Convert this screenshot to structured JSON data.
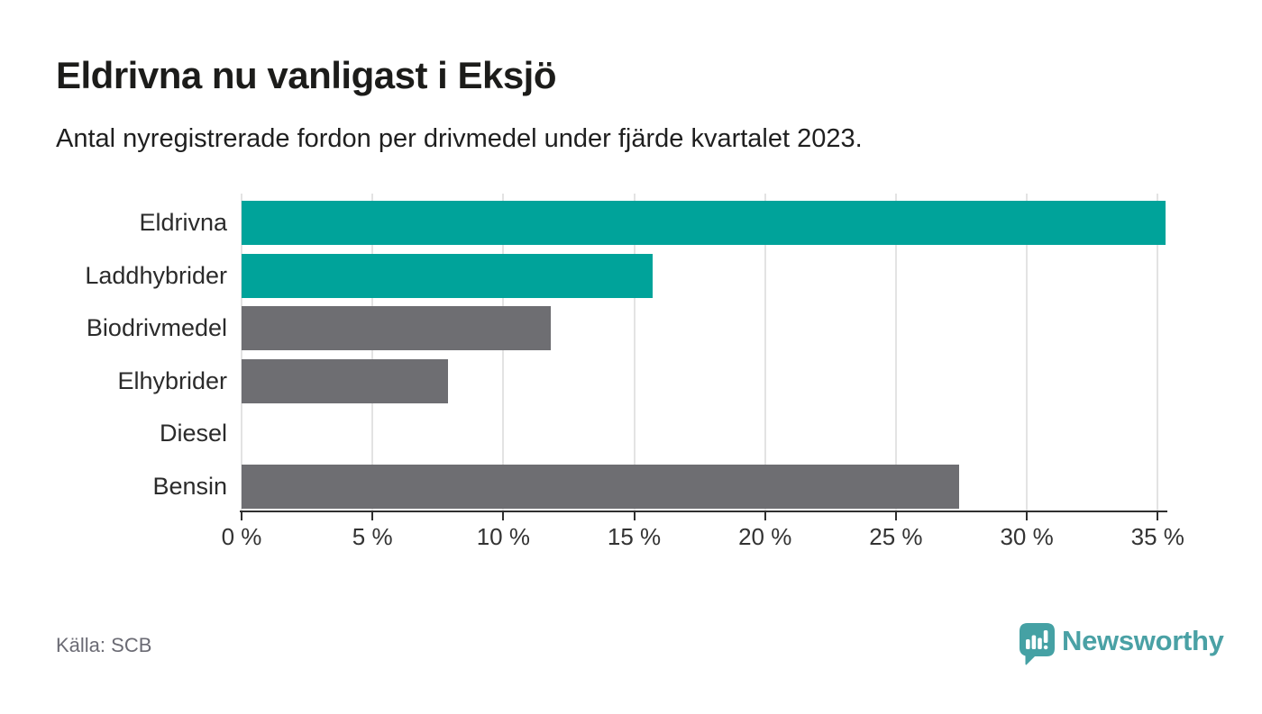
{
  "header": {
    "title": "Eldrivna nu vanligast i Eksjö",
    "subtitle": "Antal nyregistrerade fordon per drivmedel under fjärde kvartalet 2023."
  },
  "chart_data": {
    "type": "bar",
    "orientation": "horizontal",
    "title": "Eldrivna nu vanligast i Eksjö",
    "subtitle": "Antal nyregistrerade fordon per drivmedel under fjärde kvartalet 2023.",
    "categories": [
      "Eldrivna",
      "Laddhybrider",
      "Biodrivmedel",
      "Elhybrider",
      "Diesel",
      "Bensin"
    ],
    "values": [
      35.3,
      15.7,
      11.8,
      7.9,
      0,
      27.4
    ],
    "unit": "%",
    "xlim": [
      0,
      35.3
    ],
    "x_ticks": {
      "values": [
        0,
        5,
        10,
        15,
        20,
        25,
        30,
        35
      ],
      "labels": [
        "0 %",
        "5 %",
        "10 %",
        "15 %",
        "20 %",
        "25 %",
        "30 %",
        "35 %"
      ]
    },
    "bar_colors": [
      "#00a39a",
      "#00a39a",
      "#6e6e72",
      "#6e6e72",
      "#6e6e72",
      "#6e6e72"
    ],
    "grid": true,
    "legend": false
  },
  "colors": {
    "accent_teal": "#00a39a",
    "neutral_gray": "#6e6e72",
    "gridline": "#e3e3e3",
    "axis": "#2f2f2f",
    "brand_teal": "#4aa1a5"
  },
  "footer": {
    "source": "Källa: SCB",
    "brand": "Newsworthy"
  }
}
